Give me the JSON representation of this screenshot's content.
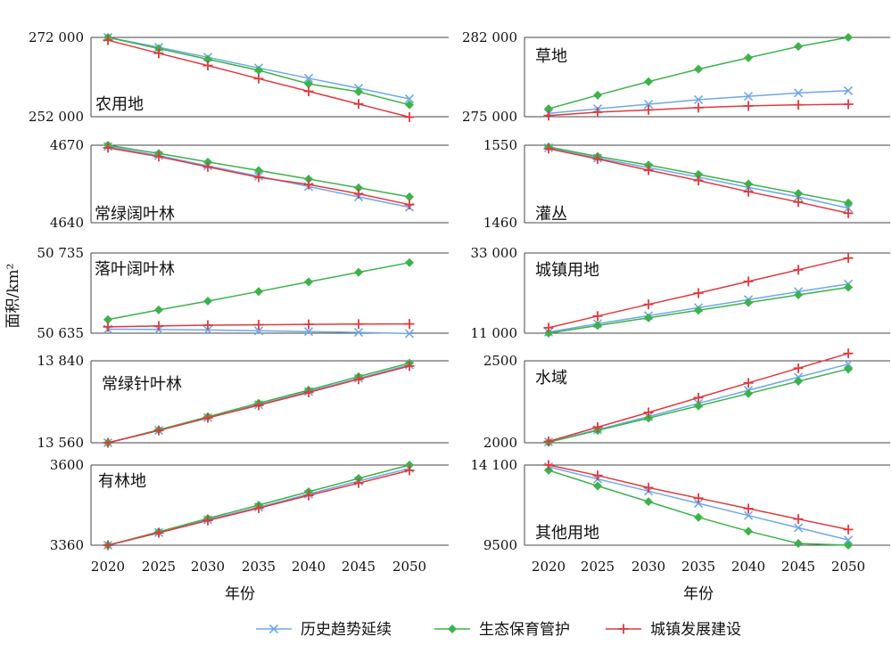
{
  "colors": {
    "history": "#6fa8e6",
    "ecology": "#3cb34a",
    "urban": "#e0393e",
    "frame": "#444444"
  },
  "ylabel": "面积/km²",
  "xlabel": "年份",
  "legend": [
    {
      "key": "history",
      "label": "历史趋势延续",
      "marker": "x-icon"
    },
    {
      "key": "ecology",
      "label": "生态保育管护",
      "marker": "diamond-icon"
    },
    {
      "key": "urban",
      "label": "城镇发展建设",
      "marker": "plus-icon"
    }
  ],
  "chart_data": {
    "type": "line",
    "x": [
      2020,
      2025,
      2030,
      2035,
      2040,
      2045,
      2050
    ],
    "x_tick_labels": [
      "2020",
      "2025",
      "2030",
      "2035",
      "2040",
      "2045",
      "2050"
    ],
    "panels": [
      {
        "title": "农用地",
        "ylim": [
          252000,
          272000
        ],
        "ytick_labels": [
          "272 000",
          "252 000"
        ],
        "series": {
          "history": [
            272000,
            269500,
            267000,
            264300,
            261700,
            259200,
            256500
          ],
          "ecology": [
            272000,
            269200,
            266500,
            263700,
            260300,
            258300,
            255000
          ],
          "urban": [
            271300,
            268000,
            264900,
            261600,
            258400,
            255200,
            251900
          ]
        }
      },
      {
        "title": "草地",
        "ylim": [
          275000,
          282000
        ],
        "ytick_labels": [
          "282 000",
          "275 000"
        ],
        "series": {
          "history": [
            275300,
            275700,
            276100,
            276500,
            276800,
            277100,
            277300
          ],
          "ecology": [
            275700,
            276900,
            278100,
            279200,
            280200,
            281200,
            282000
          ],
          "urban": [
            275100,
            275400,
            275600,
            275800,
            275950,
            276050,
            276100
          ]
        }
      },
      {
        "title": "常绿阔叶林",
        "ylim": [
          4640,
          4670
        ],
        "ytick_labels": [
          "4670",
          "4640"
        ],
        "series": {
          "history": [
            4669.5,
            4666.0,
            4662.0,
            4658.0,
            4654.0,
            4650.0,
            4646.0
          ],
          "ecology": [
            4670.0,
            4666.8,
            4663.5,
            4660.2,
            4656.9,
            4653.5,
            4650.0
          ],
          "urban": [
            4669.0,
            4665.6,
            4661.6,
            4657.6,
            4654.8,
            4651.2,
            4647.0
          ]
        }
      },
      {
        "title": "灌丛",
        "ylim": [
          1460,
          1550
        ],
        "ytick_labels": [
          "1550",
          "1460"
        ],
        "series": {
          "history": [
            1547,
            1535,
            1524,
            1513,
            1501,
            1490,
            1477
          ],
          "ecology": [
            1548,
            1537,
            1527,
            1516,
            1505,
            1494,
            1483
          ],
          "urban": [
            1546,
            1534,
            1521,
            1509,
            1496,
            1484,
            1471
          ]
        }
      },
      {
        "title": "落叶阔叶林",
        "ylim": [
          50635,
          50735
        ],
        "ytick_labels": [
          "50 735",
          "50 635"
        ],
        "series": {
          "history": [
            50640,
            50639.5,
            50639,
            50638,
            50637,
            50636,
            50634.5
          ],
          "ecology": [
            50652,
            50664,
            50675,
            50687,
            50699,
            50711,
            50723
          ],
          "urban": [
            50643,
            50644,
            50645,
            50645.5,
            50646,
            50646.3,
            50646.5
          ]
        }
      },
      {
        "title": "城镇用地",
        "ylim": [
          11000,
          33000
        ],
        "ytick_labels": [
          "33 000",
          "11 000"
        ],
        "series": {
          "history": [
            11300,
            13600,
            15800,
            18000,
            20200,
            22400,
            24500
          ],
          "ecology": [
            11000,
            13100,
            15200,
            17300,
            19400,
            21500,
            23600
          ],
          "urban": [
            12500,
            15700,
            18900,
            22000,
            25200,
            28400,
            31600
          ]
        }
      },
      {
        "title": "常绿针叶林",
        "ylim": [
          13560,
          13840
        ],
        "ytick_labels": [
          "13 840",
          "13 560"
        ],
        "series": {
          "history": [
            13560,
            13602,
            13646,
            13690,
            13735,
            13780,
            13826
          ],
          "ecology": [
            13560,
            13604,
            13649,
            13695,
            13740,
            13786,
            13832
          ],
          "urban": [
            13560,
            13602,
            13645,
            13688,
            13732,
            13777,
            13822
          ]
        }
      },
      {
        "title": "水域",
        "ylim": [
          2000,
          2500
        ],
        "ytick_labels": [
          "2500",
          "2000"
        ],
        "series": {
          "history": [
            2005,
            2080,
            2160,
            2240,
            2320,
            2400,
            2480
          ],
          "ecology": [
            2003,
            2075,
            2150,
            2225,
            2300,
            2375,
            2450
          ],
          "urban": [
            2008,
            2095,
            2185,
            2275,
            2365,
            2455,
            2545
          ]
        }
      },
      {
        "title": "有林地",
        "ylim": [
          3360,
          3600
        ],
        "ytick_labels": [
          "3600",
          "3360"
        ],
        "series": {
          "history": [
            3360,
            3398,
            3436,
            3474,
            3513,
            3552,
            3590
          ],
          "ecology": [
            3360,
            3400,
            3440,
            3480,
            3520,
            3560,
            3600
          ],
          "urban": [
            3360,
            3397,
            3434,
            3471,
            3509,
            3546,
            3584
          ]
        }
      },
      {
        "title": "其他用地",
        "ylim": [
          9500,
          14100
        ],
        "ytick_labels": [
          "14 100",
          "9500"
        ],
        "series": {
          "history": [
            14000,
            13300,
            12600,
            11900,
            11200,
            10500,
            9800
          ],
          "ecology": [
            13800,
            12900,
            12000,
            11100,
            10300,
            9600,
            9500
          ],
          "urban": [
            14100,
            13500,
            12800,
            12200,
            11600,
            11000,
            10400
          ]
        }
      }
    ]
  }
}
